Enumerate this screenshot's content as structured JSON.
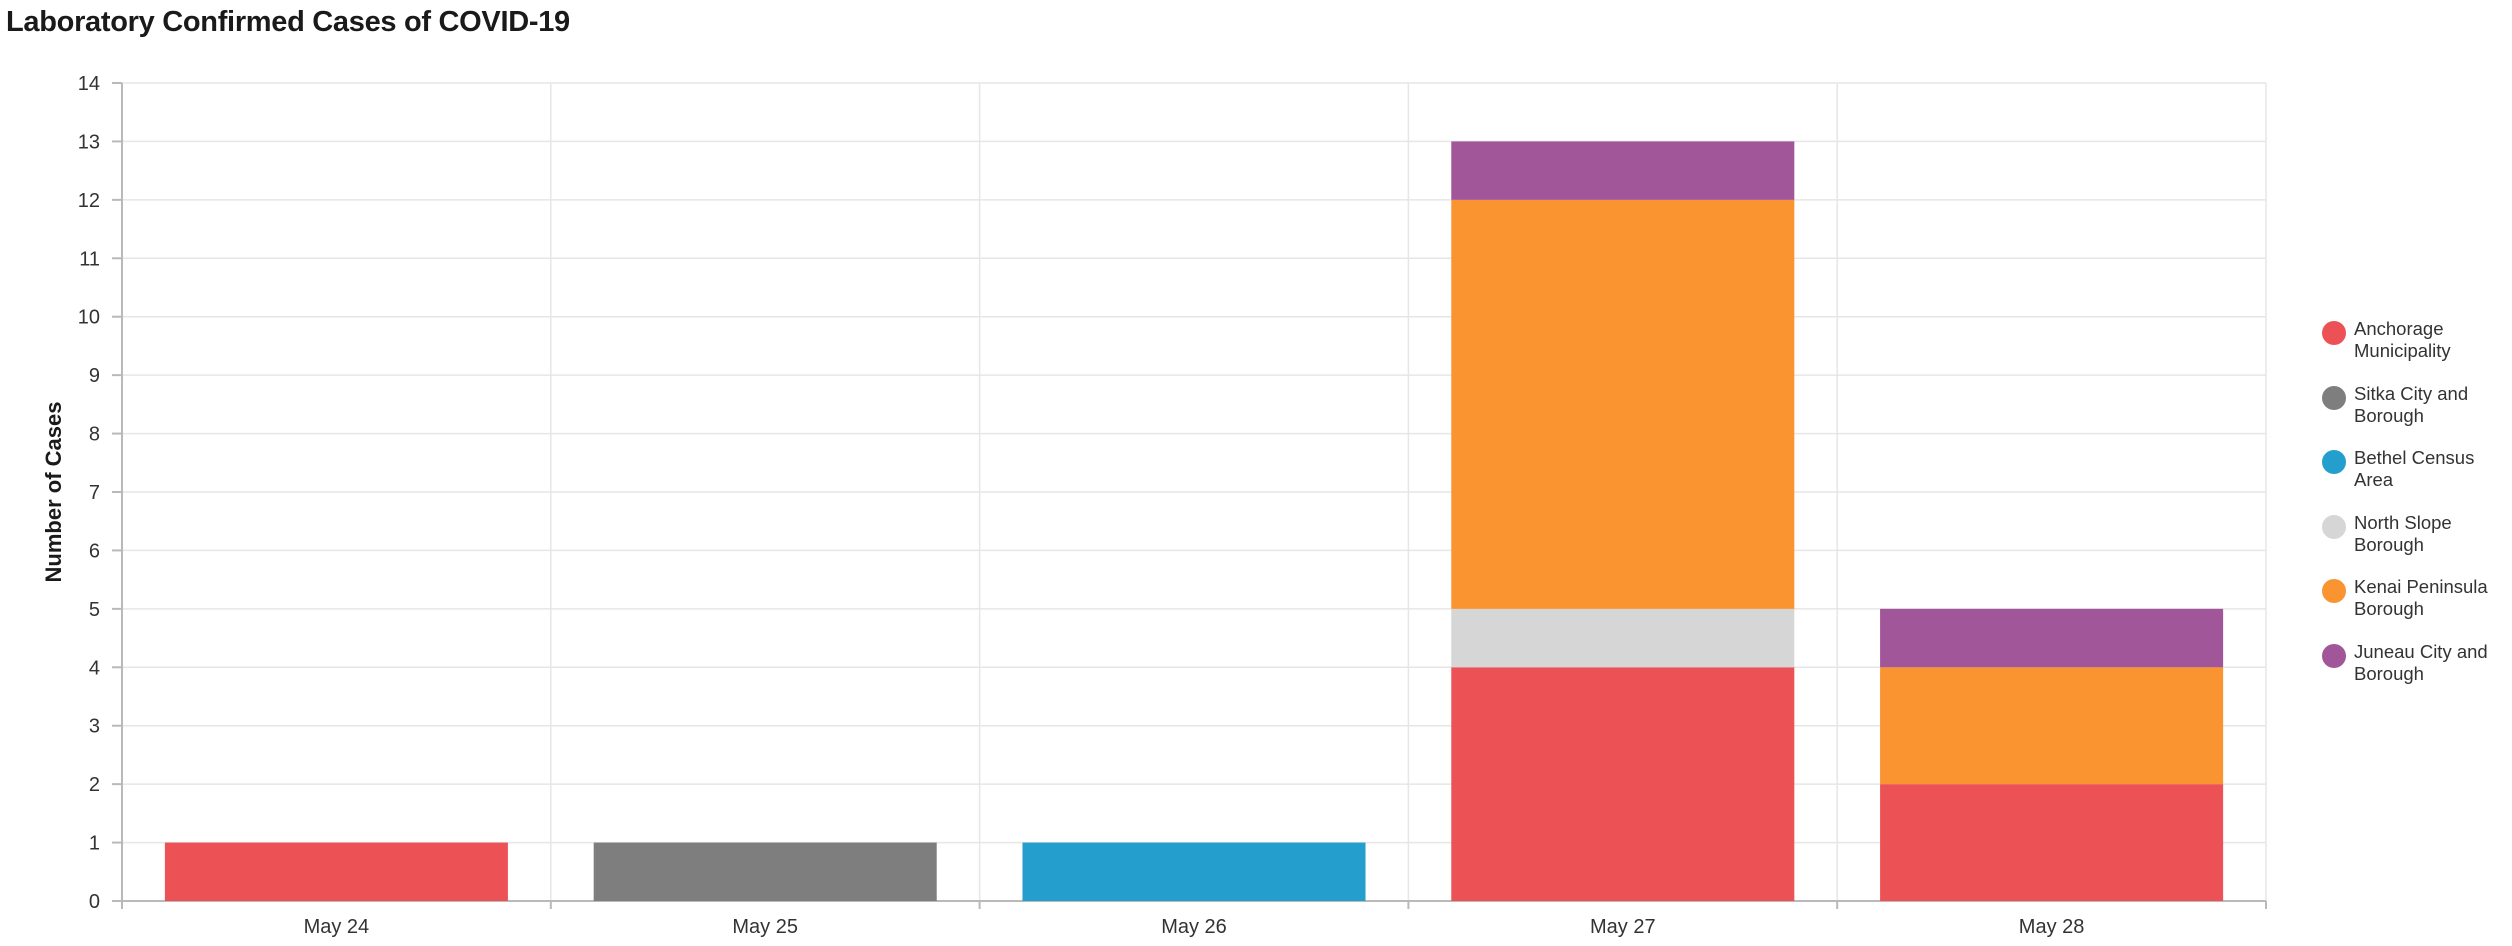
{
  "chart_data": {
    "type": "bar",
    "stacked": true,
    "title": "Laboratory Confirmed Cases of COVID-19",
    "xlabel": "",
    "ylabel": "Number of Cases",
    "ylim": [
      0,
      14
    ],
    "yticks": [
      0,
      1,
      2,
      3,
      4,
      5,
      6,
      7,
      8,
      9,
      10,
      11,
      12,
      13,
      14
    ],
    "grid": true,
    "legend_position": "right",
    "categories": [
      "May 24",
      "May 25",
      "May 26",
      "May 27",
      "May 28"
    ],
    "series": [
      {
        "name": "Anchorage Municipality",
        "color": "#ec5255",
        "values": [
          1,
          0,
          0,
          4,
          2
        ]
      },
      {
        "name": "Sitka City and Borough",
        "color": "#7e7e7e",
        "values": [
          0,
          1,
          0,
          0,
          0
        ]
      },
      {
        "name": "Bethel Census Area",
        "color": "#249fcd",
        "values": [
          0,
          0,
          1,
          0,
          0
        ]
      },
      {
        "name": "North Slope Borough",
        "color": "#d6d6d6",
        "values": [
          0,
          0,
          0,
          1,
          0
        ]
      },
      {
        "name": "Kenai Peninsula Borough",
        "color": "#f99431",
        "values": [
          0,
          0,
          0,
          7,
          2
        ]
      },
      {
        "name": "Juneau City and Borough",
        "color": "#a05699",
        "values": [
          0,
          0,
          0,
          1,
          1
        ]
      }
    ]
  }
}
